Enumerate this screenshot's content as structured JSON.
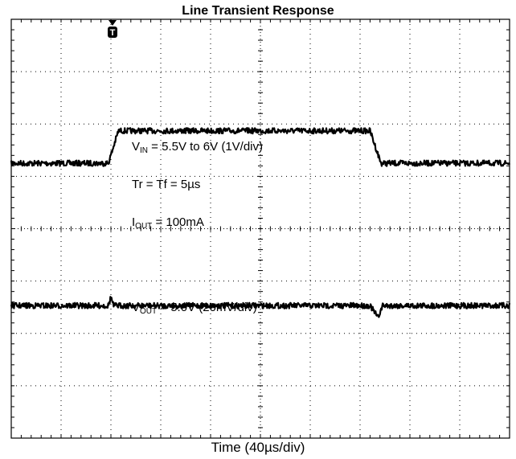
{
  "chart_data": {
    "type": "line",
    "title": "Line Transient Response",
    "xlabel": "Time (40µs/div)",
    "ylabel": "",
    "x_divisions": 10,
    "y_divisions": 8,
    "grid": true,
    "trigger_marker": "T",
    "series": [
      {
        "trace": "vin",
        "x_div": [
          0,
          1.95,
          2.15,
          7.2,
          7.42,
          10
        ],
        "y_div": [
          5.25,
          5.25,
          5.87,
          5.87,
          5.25,
          5.25
        ]
      },
      {
        "trace": "vout",
        "x_div": [
          0,
          1.95,
          2.0,
          2.05,
          2.15,
          7.2,
          7.28,
          7.36,
          7.45,
          10
        ],
        "y_div": [
          2.53,
          2.53,
          2.7,
          2.53,
          2.53,
          2.53,
          2.42,
          2.3,
          2.53,
          2.53
        ]
      }
    ],
    "annotations": {
      "vin": {
        "main": "V",
        "sub": "IN",
        "rest": " = 5.5V to 6V (1V/div)"
      },
      "tr": "Tr = Tf = 5µs",
      "iout": {
        "main": "I",
        "sub": "OUT",
        "rest": " = 100mA"
      },
      "vout": {
        "main": "V",
        "sub": "OUT",
        "rest": " = 5.0V (20mV/div)"
      }
    }
  }
}
